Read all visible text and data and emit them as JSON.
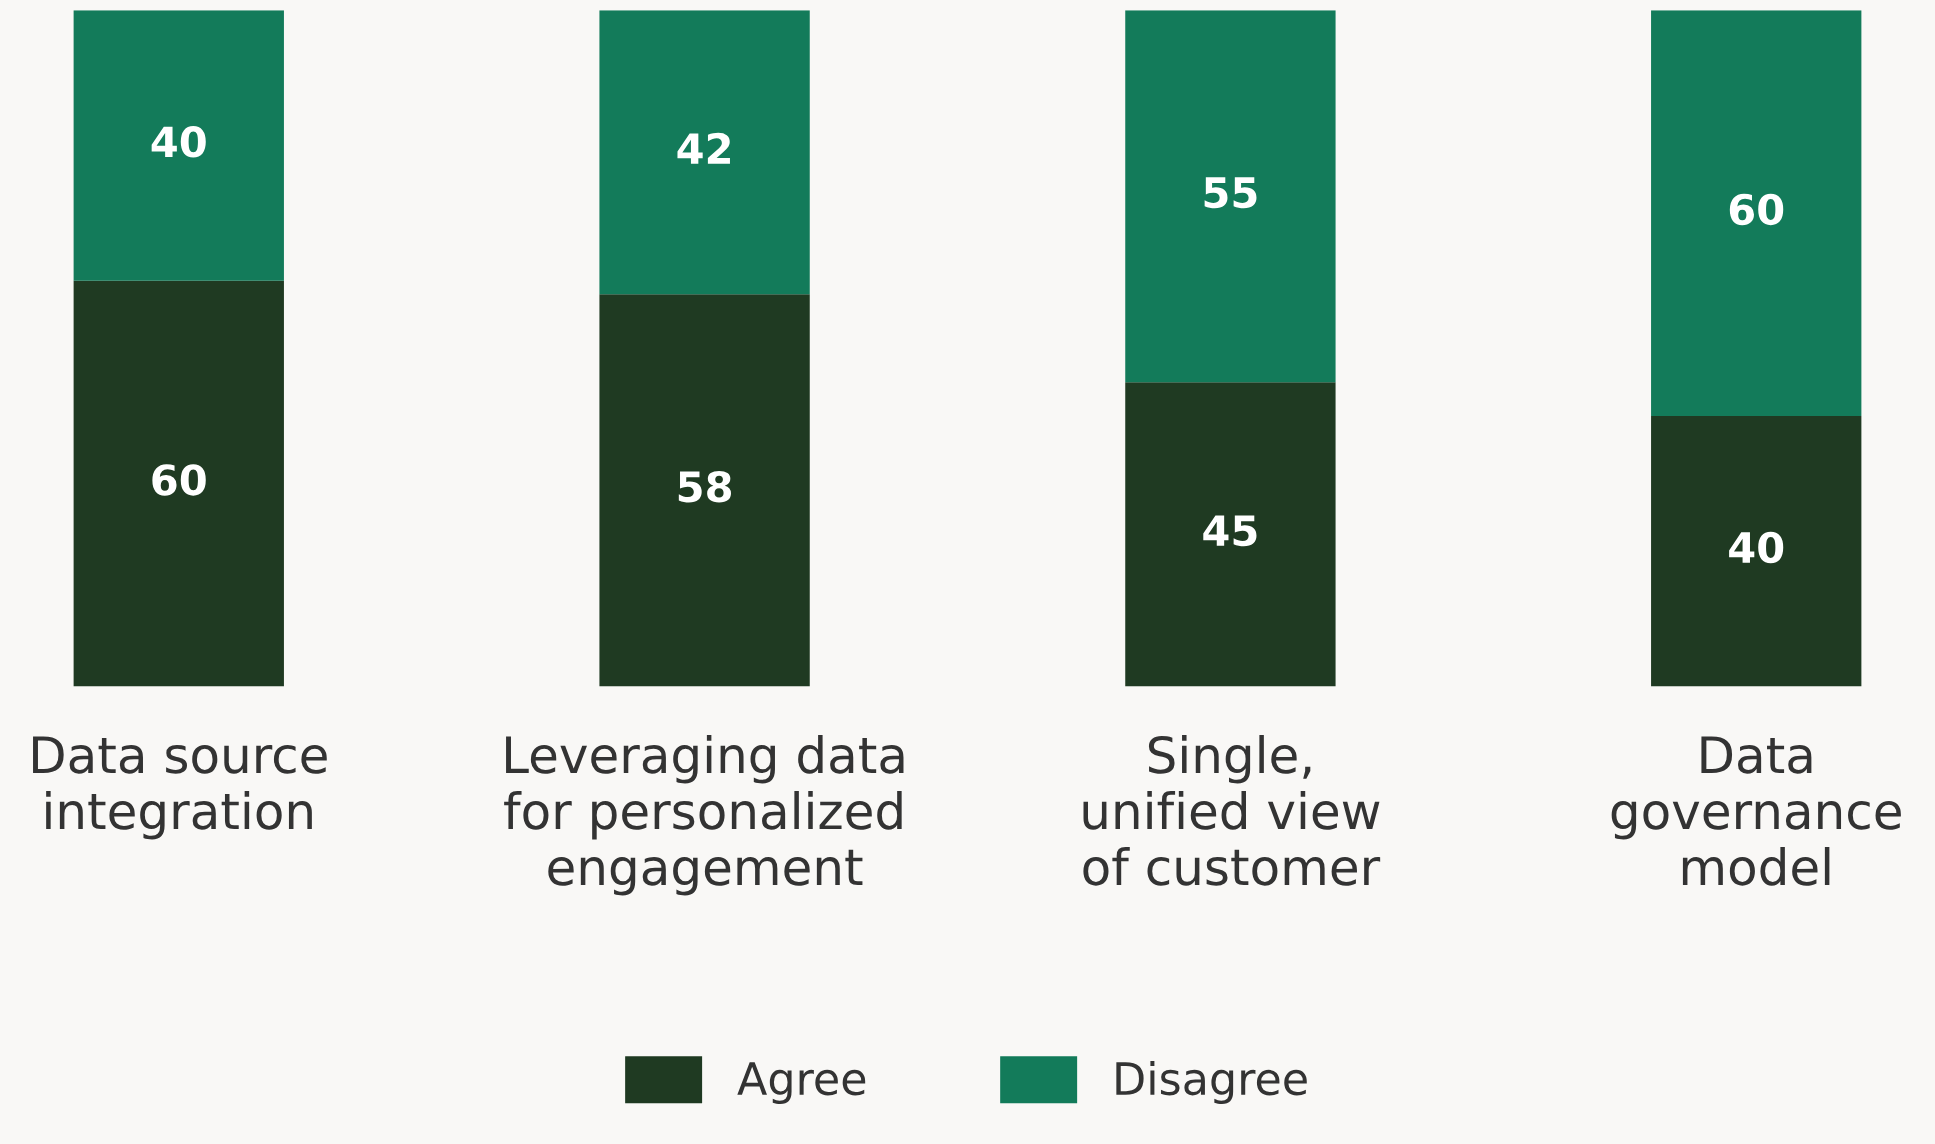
{
  "chart_data": {
    "type": "bar",
    "stacked": true,
    "data_labels": true,
    "legend": "bottom",
    "grid": false,
    "categories": [
      "Data source\nintegration",
      "Leveraging data\nfor personalized\nengagement",
      "Single,\nunified view\nof customer",
      "Data\ngovernance\nmodel"
    ],
    "series": [
      {
        "name": "Agree",
        "color": "#1f3a22",
        "values": [
          60,
          58,
          45,
          40
        ]
      },
      {
        "name": "Disagree",
        "color": "#137b5a",
        "values": [
          40,
          42,
          55,
          60
        ]
      }
    ]
  }
}
